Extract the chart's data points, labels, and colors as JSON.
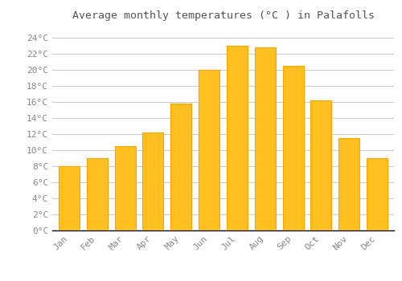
{
  "months": [
    "Jan",
    "Feb",
    "Mar",
    "Apr",
    "May",
    "Jun",
    "Jul",
    "Aug",
    "Sep",
    "Oct",
    "Nov",
    "Dec"
  ],
  "values": [
    8.0,
    9.0,
    10.5,
    12.2,
    15.8,
    20.0,
    23.0,
    22.8,
    20.5,
    16.2,
    11.5,
    9.0
  ],
  "bar_color": "#FFC020",
  "bar_edge_color": "#FFA500",
  "background_color": "#FFFFFF",
  "grid_color": "#CCCCCC",
  "title": "Average monthly temperatures (°C ) in Palafolls",
  "title_fontsize": 9.5,
  "title_font": "monospace",
  "tick_font": "monospace",
  "tick_fontsize": 8,
  "ytick_labels": [
    "0°C",
    "2°C",
    "4°C",
    "6°C",
    "8°C",
    "10°C",
    "12°C",
    "14°C",
    "16°C",
    "18°C",
    "20°C",
    "22°C",
    "24°C"
  ],
  "ytick_values": [
    0,
    2,
    4,
    6,
    8,
    10,
    12,
    14,
    16,
    18,
    20,
    22,
    24
  ],
  "ylim": [
    0,
    25.5
  ],
  "bar_width": 0.75,
  "tick_color": "#888888",
  "title_color": "#555555"
}
